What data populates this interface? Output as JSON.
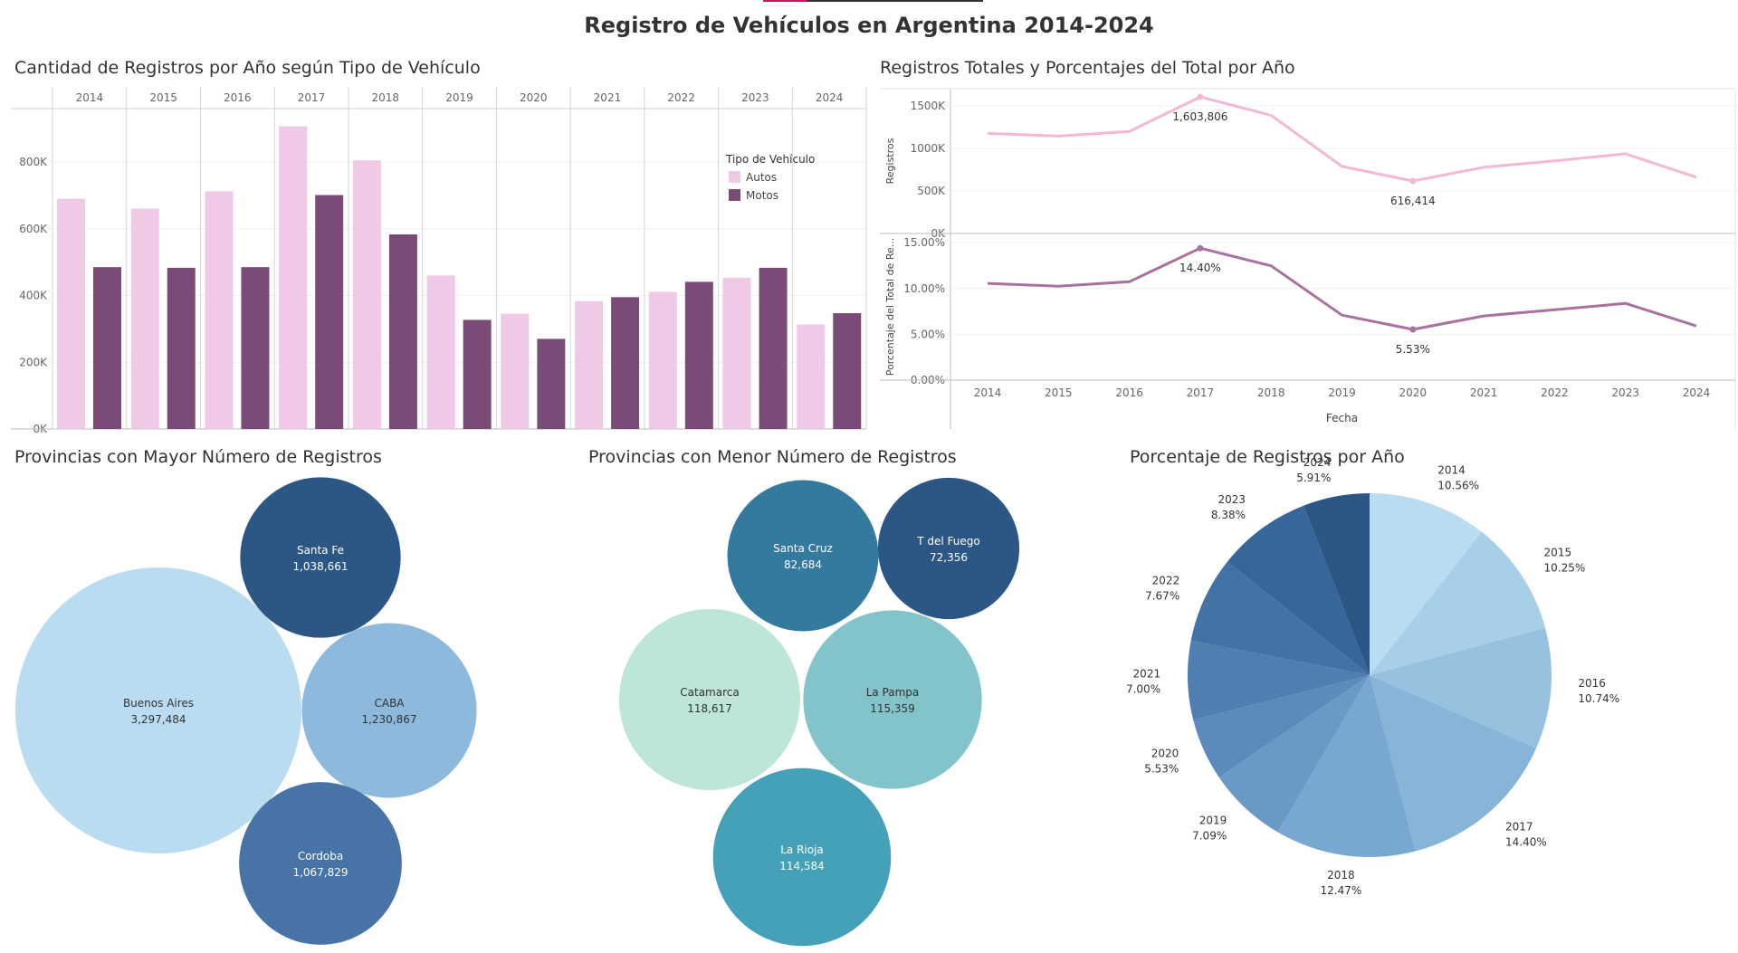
{
  "title": "Registro de Vehículos en Argentina 2014-2024",
  "colors": {
    "autos": "#f0c9e6",
    "motos": "#7b4b78",
    "line_total": "#f3b8d4",
    "line_pct": "#a8719e"
  },
  "chart_data": [
    {
      "type": "bar",
      "title": "Cantidad de Registros por Año según Tipo de Vehículo",
      "categories": [
        "2014",
        "2015",
        "2016",
        "2017",
        "2018",
        "2019",
        "2020",
        "2021",
        "2022",
        "2023",
        "2024"
      ],
      "series": [
        {
          "name": "Autos",
          "values": [
            690000,
            660000,
            712000,
            907000,
            805000,
            460000,
            345000,
            383000,
            411000,
            453000,
            313000
          ]
        },
        {
          "name": "Motos",
          "values": [
            485000,
            483000,
            485000,
            701000,
            583000,
            327000,
            270000,
            395000,
            441000,
            483000,
            347000
          ]
        }
      ],
      "ylim": [
        0,
        960000
      ],
      "yticks": [
        0,
        200000,
        400000,
        600000,
        800000
      ],
      "ytick_labels": [
        "0K",
        "200K",
        "400K",
        "600K",
        "800K"
      ],
      "legend_title": "Tipo de Vehículo",
      "legend_position": "top-right"
    },
    {
      "type": "line",
      "title": "Registros Totales y Porcentajes del Total por Año",
      "x": [
        "2014",
        "2015",
        "2016",
        "2017",
        "2018",
        "2019",
        "2020",
        "2021",
        "2022",
        "2023",
        "2024"
      ],
      "xlabel": "Fecha",
      "panels": [
        {
          "ylabel": "Registros",
          "values": [
            1175000,
            1143000,
            1197000,
            1603806,
            1388000,
            787000,
            616414,
            778000,
            852000,
            936000,
            660000
          ],
          "ylim": [
            0,
            1700000
          ],
          "yticks": [
            0,
            500000,
            1000000,
            1500000
          ],
          "ytick_labels": [
            "0K",
            "500K",
            "1000K",
            "1500K"
          ],
          "annotations": [
            {
              "x": "2017",
              "label": "1,603,806",
              "pos": "below"
            },
            {
              "x": "2020",
              "label": "616,414",
              "pos": "below"
            }
          ]
        },
        {
          "ylabel": "Porcentaje del Total de Re...",
          "values": [
            10.56,
            10.25,
            10.74,
            14.4,
            12.47,
            7.09,
            5.53,
            7.0,
            7.67,
            8.38,
            5.91
          ],
          "ylim": [
            0,
            16
          ],
          "yticks": [
            0,
            5,
            10,
            15
          ],
          "ytick_labels": [
            "0.00%",
            "5.00%",
            "10.00%",
            "15.00%"
          ],
          "annotations": [
            {
              "x": "2017",
              "label": "14.40%",
              "pos": "below"
            },
            {
              "x": "2020",
              "label": "5.53%",
              "pos": "below"
            }
          ]
        }
      ]
    },
    {
      "type": "bubble",
      "title": "Provincias con Mayor Número de Registros",
      "items": [
        {
          "name": "Buenos Aires",
          "value": 3297484,
          "label": "3,297,484",
          "color": "#b9dcf0"
        },
        {
          "name": "Santa Fe",
          "value": 1038661,
          "label": "1,038,661",
          "color": "#2c5785"
        },
        {
          "name": "CABA",
          "value": 1230867,
          "label": "1,230,867",
          "color": "#8cb9dc"
        },
        {
          "name": "Cordoba",
          "value": 1067829,
          "label": "1,067,829",
          "color": "#4773a6"
        }
      ]
    },
    {
      "type": "bubble",
      "title": "Provincias con Menor Número de Registros",
      "items": [
        {
          "name": "Santa Cruz",
          "value": 82684,
          "label": "82,684",
          "color": "#347a9f"
        },
        {
          "name": "T del Fuego",
          "value": 72356,
          "label": "72,356",
          "color": "#2c5785"
        },
        {
          "name": "Catamarca",
          "value": 118617,
          "label": "118,617",
          "color": "#bde5da"
        },
        {
          "name": "La Pampa",
          "value": 115359,
          "label": "115,359",
          "color": "#82c4c9"
        },
        {
          "name": "La Rioja",
          "value": 114584,
          "label": "114,584",
          "color": "#45a1b8"
        }
      ]
    },
    {
      "type": "pie",
      "title": "Porcentaje de Registros por Año",
      "slices": [
        {
          "label": "2014",
          "value": 10.56,
          "text": "10.56%",
          "color": "#b9dcf1"
        },
        {
          "label": "2015",
          "value": 10.25,
          "text": "10.25%",
          "color": "#a7cfe8"
        },
        {
          "label": "2016",
          "value": 10.74,
          "text": "10.74%",
          "color": "#96c2e0"
        },
        {
          "label": "2017",
          "value": 14.4,
          "text": "14.40%",
          "color": "#86b5d8"
        },
        {
          "label": "2018",
          "value": 12.47,
          "text": "12.47%",
          "color": "#78a8d0"
        },
        {
          "label": "2019",
          "value": 7.09,
          "text": "7.09%",
          "color": "#6a99c5"
        },
        {
          "label": "2020",
          "value": 5.53,
          "text": "5.53%",
          "color": "#5c8bbb"
        },
        {
          "label": "2021",
          "value": 7.0,
          "text": "7.00%",
          "color": "#4f7eb1"
        },
        {
          "label": "2022",
          "value": 7.67,
          "text": "7.67%",
          "color": "#4372a6"
        },
        {
          "label": "2023",
          "value": 8.38,
          "text": "8.38%",
          "color": "#37669a"
        },
        {
          "label": "2024",
          "value": 5.91,
          "text": "5.91%",
          "color": "#2c5785"
        }
      ]
    }
  ]
}
